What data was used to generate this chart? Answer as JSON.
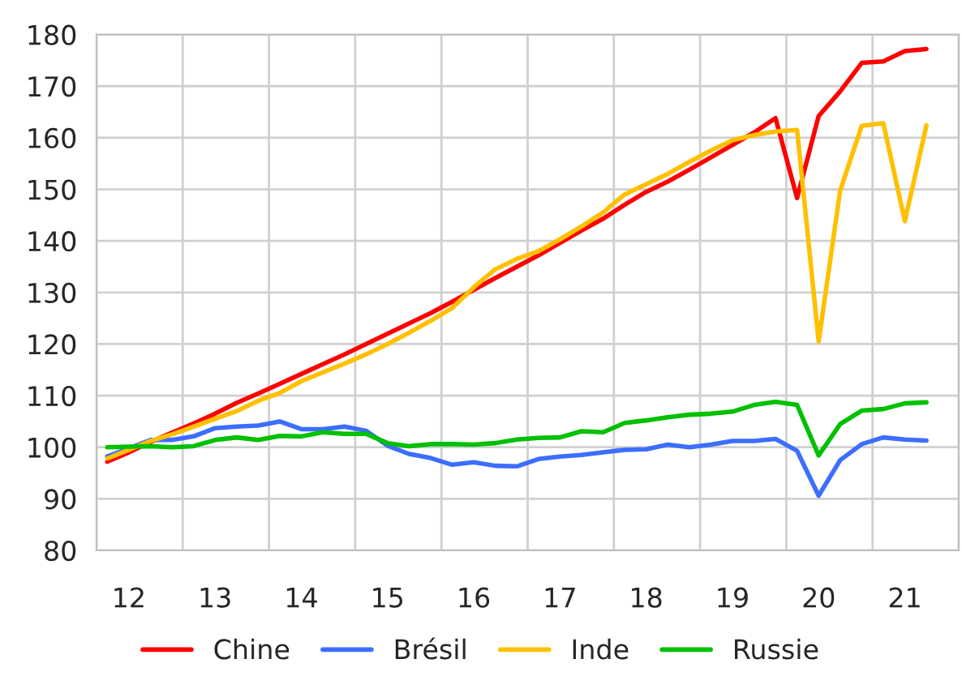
{
  "chart_data": {
    "type": "line",
    "categories": [
      null,
      "12",
      null,
      null,
      null,
      "13",
      null,
      null,
      null,
      "14",
      null,
      null,
      null,
      "15",
      null,
      null,
      null,
      "16",
      null,
      null,
      null,
      "17",
      null,
      null,
      null,
      "18",
      null,
      null,
      null,
      "19",
      null,
      null,
      null,
      "20",
      null,
      null,
      null,
      "21",
      null,
      null
    ],
    "series": [
      {
        "name": "Chine",
        "color": "#ff0000",
        "values": [
          97.2,
          99,
          101,
          102.8,
          104.6,
          106.5,
          108.6,
          110.4,
          112.3,
          114.2,
          116.1,
          118,
          120,
          122,
          124,
          126,
          128.2,
          130.5,
          132.8,
          135,
          137.2,
          139.6,
          142,
          144.3,
          147,
          149.5,
          151.5,
          153.8,
          156.2,
          158.6,
          161,
          163.8,
          148.3,
          164.2,
          169,
          174.5,
          174.8,
          176.8,
          177.2,
          null
        ]
      },
      {
        "name": "Brésil",
        "color": "#3c6eff",
        "values": [
          98.2,
          99.8,
          101.4,
          101.4,
          102.1,
          103.7,
          104,
          104.2,
          105,
          103.5,
          103.5,
          104,
          103.2,
          100.3,
          98.7,
          97.9,
          96.6,
          97.1,
          96.4,
          96.3,
          97.7,
          98.2,
          98.5,
          99,
          99.5,
          99.6,
          100.5,
          100,
          100.5,
          101.2,
          101.2,
          101.6,
          99.3,
          90.6,
          97.5,
          100.6,
          101.9,
          101.5,
          101.3,
          null
        ]
      },
      {
        "name": "Inde",
        "color": "#ffc000",
        "values": [
          97.8,
          99.5,
          101.2,
          102.5,
          104,
          105.5,
          107,
          109,
          110.5,
          112.8,
          114.5,
          116.2,
          118,
          120,
          122.2,
          124.5,
          127,
          131,
          134.5,
          136.5,
          138,
          140.3,
          142.8,
          145.5,
          149,
          151,
          153,
          155.3,
          157.5,
          159.5,
          160.5,
          161.2,
          161.5,
          120.5,
          149.8,
          162.3,
          162.8,
          143.8,
          162.4,
          null
        ]
      },
      {
        "name": "Russie",
        "color": "#00c000",
        "values": [
          100,
          100.1,
          100.2,
          100,
          100.2,
          101.4,
          101.9,
          101.4,
          102.2,
          102.1,
          102.9,
          102.6,
          102.6,
          100.8,
          100.2,
          100.6,
          100.6,
          100.5,
          100.8,
          101.5,
          101.8,
          101.9,
          103.1,
          102.9,
          104.7,
          105.2,
          105.8,
          106.3,
          106.5,
          106.9,
          108.2,
          108.8,
          108.2,
          98.4,
          104.5,
          107.1,
          107.4,
          108.5,
          108.7,
          null
        ]
      }
    ],
    "ylim": [
      80,
      180
    ],
    "yticks": [
      80,
      90,
      100,
      110,
      120,
      130,
      140,
      150,
      160,
      170,
      180
    ],
    "grid": true,
    "legend": "bottom",
    "marker": "none",
    "line_style": "solid"
  }
}
